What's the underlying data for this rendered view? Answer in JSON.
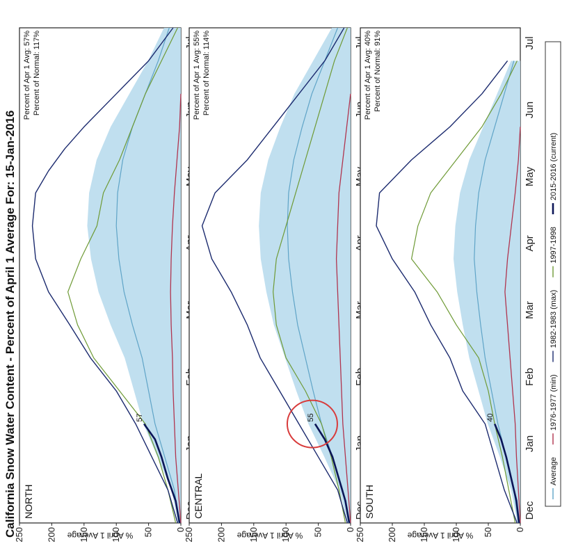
{
  "chart_data": {
    "type": "area",
    "title": "California Snow Water Content - Percent of April 1 Average For: 15-Jan-2016",
    "ylabel": "% April 1 Average",
    "ylim": [
      0,
      250
    ],
    "yticks": [
      0,
      50,
      100,
      150,
      200,
      250
    ],
    "months": [
      "Dec",
      "Jan",
      "Feb",
      "Mar",
      "Apr",
      "May",
      "Jun",
      "Jul"
    ],
    "legend": {
      "average": "Average",
      "min": "1976-1977 (min)",
      "max": "1982-1983 (max)",
      "y1997": "1997-1998",
      "current": "2015-2016 (current)"
    },
    "colors": {
      "band": "#b9dced",
      "average": "#5fa4c7",
      "min": "#b0344e",
      "max": "#1b2a6e",
      "y1997": "#6e9a35",
      "current": "#0b1557"
    },
    "panels": [
      {
        "name": "NORTH",
        "stat1": "Percent of Apr 1 Avg: 57%",
        "stat2": "Percent of Normal: 117%",
        "current_label": "57",
        "average": [
          [
            0,
            3
          ],
          [
            15,
            10
          ],
          [
            30,
            25
          ],
          [
            45,
            40
          ],
          [
            60,
            50
          ],
          [
            75,
            60
          ],
          [
            90,
            75
          ],
          [
            105,
            88
          ],
          [
            120,
            96
          ],
          [
            135,
            100
          ],
          [
            150,
            98
          ],
          [
            165,
            90
          ],
          [
            180,
            75
          ],
          [
            195,
            55
          ],
          [
            210,
            35
          ],
          [
            225,
            18
          ]
        ],
        "max": [
          [
            0,
            5
          ],
          [
            15,
            20
          ],
          [
            30,
            45
          ],
          [
            45,
            70
          ],
          [
            60,
            100
          ],
          [
            75,
            140
          ],
          [
            90,
            172
          ],
          [
            105,
            205
          ],
          [
            120,
            225
          ],
          [
            135,
            230
          ],
          [
            150,
            225
          ],
          [
            160,
            205
          ],
          [
            170,
            180
          ],
          [
            180,
            150
          ],
          [
            195,
            100
          ],
          [
            210,
            50
          ],
          [
            225,
            12
          ]
        ],
        "y1997": [
          [
            0,
            8
          ],
          [
            15,
            20
          ],
          [
            30,
            35
          ],
          [
            45,
            55
          ],
          [
            60,
            95
          ],
          [
            75,
            135
          ],
          [
            90,
            160
          ],
          [
            105,
            175
          ],
          [
            120,
            155
          ],
          [
            135,
            130
          ],
          [
            150,
            120
          ],
          [
            165,
            95
          ],
          [
            180,
            75
          ],
          [
            195,
            55
          ],
          [
            210,
            30
          ],
          [
            225,
            5
          ]
        ],
        "min": [
          [
            0,
            0
          ],
          [
            15,
            4
          ],
          [
            30,
            8
          ],
          [
            45,
            10
          ],
          [
            60,
            12
          ],
          [
            75,
            13
          ],
          [
            90,
            15
          ],
          [
            105,
            16
          ],
          [
            120,
            15
          ],
          [
            135,
            13
          ],
          [
            150,
            10
          ],
          [
            165,
            6
          ],
          [
            180,
            2
          ],
          [
            195,
            0
          ]
        ],
        "current": [
          [
            0,
            2
          ],
          [
            10,
            8
          ],
          [
            20,
            20
          ],
          [
            30,
            30
          ],
          [
            38,
            40
          ],
          [
            45,
            57
          ]
        ]
      },
      {
        "name": "CENTRAL",
        "stat1": "Percent of Apr 1 Avg: 55%",
        "stat2": "Percent of Normal: 114%",
        "current_label": "55",
        "average": [
          [
            0,
            3
          ],
          [
            15,
            12
          ],
          [
            30,
            28
          ],
          [
            45,
            45
          ],
          [
            60,
            58
          ],
          [
            75,
            70
          ],
          [
            90,
            82
          ],
          [
            105,
            90
          ],
          [
            120,
            96
          ],
          [
            135,
            98
          ],
          [
            150,
            96
          ],
          [
            165,
            88
          ],
          [
            180,
            75
          ],
          [
            195,
            60
          ],
          [
            210,
            40
          ],
          [
            225,
            20
          ]
        ],
        "max": [
          [
            0,
            5
          ],
          [
            15,
            20
          ],
          [
            30,
            50
          ],
          [
            45,
            80
          ],
          [
            60,
            110
          ],
          [
            75,
            140
          ],
          [
            90,
            160
          ],
          [
            105,
            185
          ],
          [
            120,
            215
          ],
          [
            135,
            230
          ],
          [
            150,
            210
          ],
          [
            165,
            160
          ],
          [
            180,
            120
          ],
          [
            195,
            80
          ],
          [
            210,
            40
          ],
          [
            225,
            10
          ]
        ],
        "y1997": [
          [
            0,
            8
          ],
          [
            15,
            18
          ],
          [
            30,
            30
          ],
          [
            45,
            45
          ],
          [
            60,
            70
          ],
          [
            75,
            100
          ],
          [
            90,
            115
          ],
          [
            105,
            120
          ],
          [
            120,
            115
          ],
          [
            135,
            100
          ],
          [
            150,
            85
          ],
          [
            165,
            70
          ],
          [
            180,
            55
          ],
          [
            195,
            40
          ],
          [
            210,
            25
          ],
          [
            225,
            5
          ]
        ],
        "min": [
          [
            0,
            0
          ],
          [
            15,
            4
          ],
          [
            30,
            8
          ],
          [
            45,
            12
          ],
          [
            60,
            14
          ],
          [
            75,
            16
          ],
          [
            90,
            18
          ],
          [
            105,
            20
          ],
          [
            120,
            22
          ],
          [
            135,
            20
          ],
          [
            150,
            18
          ],
          [
            165,
            12
          ],
          [
            180,
            6
          ],
          [
            195,
            0
          ]
        ],
        "current": [
          [
            0,
            2
          ],
          [
            10,
            8
          ],
          [
            20,
            18
          ],
          [
            30,
            28
          ],
          [
            38,
            40
          ],
          [
            45,
            55
          ]
        ]
      },
      {
        "name": "SOUTH",
        "stat1": "Percent of Apr 1 Avg: 40%",
        "stat2": "Percent of Normal: 91%",
        "current_label": "40",
        "average": [
          [
            0,
            3
          ],
          [
            15,
            10
          ],
          [
            30,
            22
          ],
          [
            45,
            35
          ],
          [
            60,
            45
          ],
          [
            75,
            55
          ],
          [
            90,
            62
          ],
          [
            105,
            68
          ],
          [
            120,
            72
          ],
          [
            135,
            70
          ],
          [
            150,
            65
          ],
          [
            165,
            55
          ],
          [
            180,
            40
          ],
          [
            195,
            25
          ],
          [
            210,
            10
          ]
        ],
        "max": [
          [
            0,
            5
          ],
          [
            15,
            25
          ],
          [
            30,
            40
          ],
          [
            45,
            55
          ],
          [
            60,
            90
          ],
          [
            75,
            110
          ],
          [
            90,
            140
          ],
          [
            105,
            165
          ],
          [
            120,
            200
          ],
          [
            135,
            225
          ],
          [
            150,
            220
          ],
          [
            165,
            170
          ],
          [
            180,
            110
          ],
          [
            195,
            60
          ],
          [
            210,
            20
          ]
        ],
        "y1997": [
          [
            0,
            8
          ],
          [
            15,
            18
          ],
          [
            30,
            28
          ],
          [
            45,
            40
          ],
          [
            60,
            50
          ],
          [
            75,
            65
          ],
          [
            90,
            100
          ],
          [
            105,
            130
          ],
          [
            120,
            170
          ],
          [
            135,
            160
          ],
          [
            150,
            140
          ],
          [
            165,
            100
          ],
          [
            180,
            60
          ],
          [
            195,
            30
          ],
          [
            210,
            5
          ]
        ],
        "min": [
          [
            0,
            0
          ],
          [
            15,
            3
          ],
          [
            30,
            6
          ],
          [
            45,
            8
          ],
          [
            60,
            12
          ],
          [
            75,
            16
          ],
          [
            90,
            20
          ],
          [
            105,
            24
          ],
          [
            120,
            20
          ],
          [
            135,
            14
          ],
          [
            150,
            8
          ],
          [
            165,
            3
          ],
          [
            180,
            0
          ]
        ],
        "current": [
          [
            0,
            2
          ],
          [
            10,
            6
          ],
          [
            20,
            14
          ],
          [
            30,
            22
          ],
          [
            38,
            30
          ],
          [
            45,
            40
          ]
        ]
      }
    ]
  }
}
